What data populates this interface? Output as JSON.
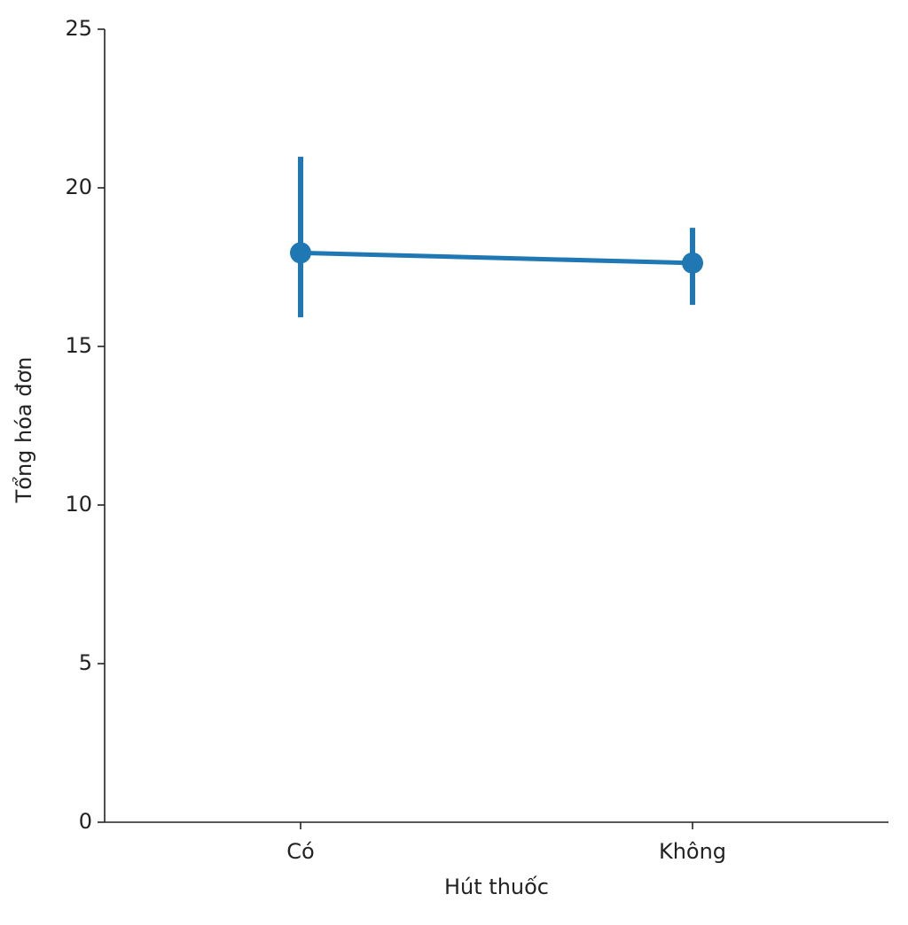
{
  "chart_data": {
    "type": "point",
    "x_label": "Hút thuốc",
    "y_label": "Tổng hóa đơn",
    "categories": [
      "Có",
      "Không"
    ],
    "series": [
      {
        "color": "#1f77b4",
        "values": [
          17.95,
          17.63
        ],
        "ci_low": [
          15.92,
          16.31
        ],
        "ci_high": [
          20.98,
          18.74
        ]
      }
    ],
    "ylim": [
      0,
      25
    ],
    "yticks": [
      0,
      5,
      10,
      15,
      20,
      25
    ],
    "grid": false
  }
}
